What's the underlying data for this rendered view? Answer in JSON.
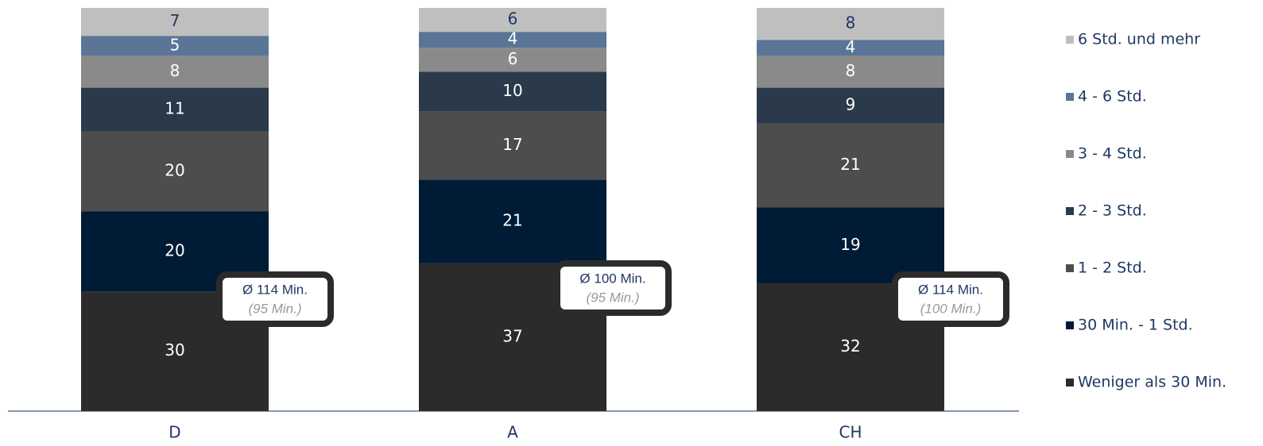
{
  "chart_data": {
    "type": "stacked_bar",
    "categories": [
      "D",
      "A",
      "CH"
    ],
    "series": [
      {
        "name": "Weniger als 30 Min.",
        "color": "#2b2b2b",
        "label_color": "#ffffff",
        "values": [
          30,
          37,
          32
        ]
      },
      {
        "name": "30 Min. - 1 Std.",
        "color": "#001b35",
        "label_color": "#ffffff",
        "values": [
          20,
          21,
          19
        ]
      },
      {
        "name": "1 - 2 Std.",
        "color": "#4d4d4d",
        "label_color": "#ffffff",
        "values": [
          20,
          17,
          21
        ]
      },
      {
        "name": "2 - 3 Std.",
        "color": "#2b3a4a",
        "label_color": "#ffffff",
        "values": [
          11,
          10,
          9
        ]
      },
      {
        "name": "3 - 4 Std.",
        "color": "#8a8a8a",
        "label_color": "#ffffff",
        "values": [
          8,
          6,
          8
        ]
      },
      {
        "name": "4 - 6 Std.",
        "color": "#5a7596",
        "label_color": "#ffffff",
        "values": [
          5,
          4,
          4
        ]
      },
      {
        "name": "6 Std. und mehr",
        "color": "#bfbfbf",
        "label_color": "#1f3864",
        "values": [
          7,
          6,
          8
        ]
      }
    ],
    "annotations": [
      {
        "average": "Ø 114 Min.",
        "previous": "(95 Min.)"
      },
      {
        "average": "Ø 100 Min.",
        "previous": "(95 Min.)"
      },
      {
        "average": "Ø 114 Min.",
        "previous": "(100 Min.)"
      }
    ],
    "legend": "right"
  }
}
